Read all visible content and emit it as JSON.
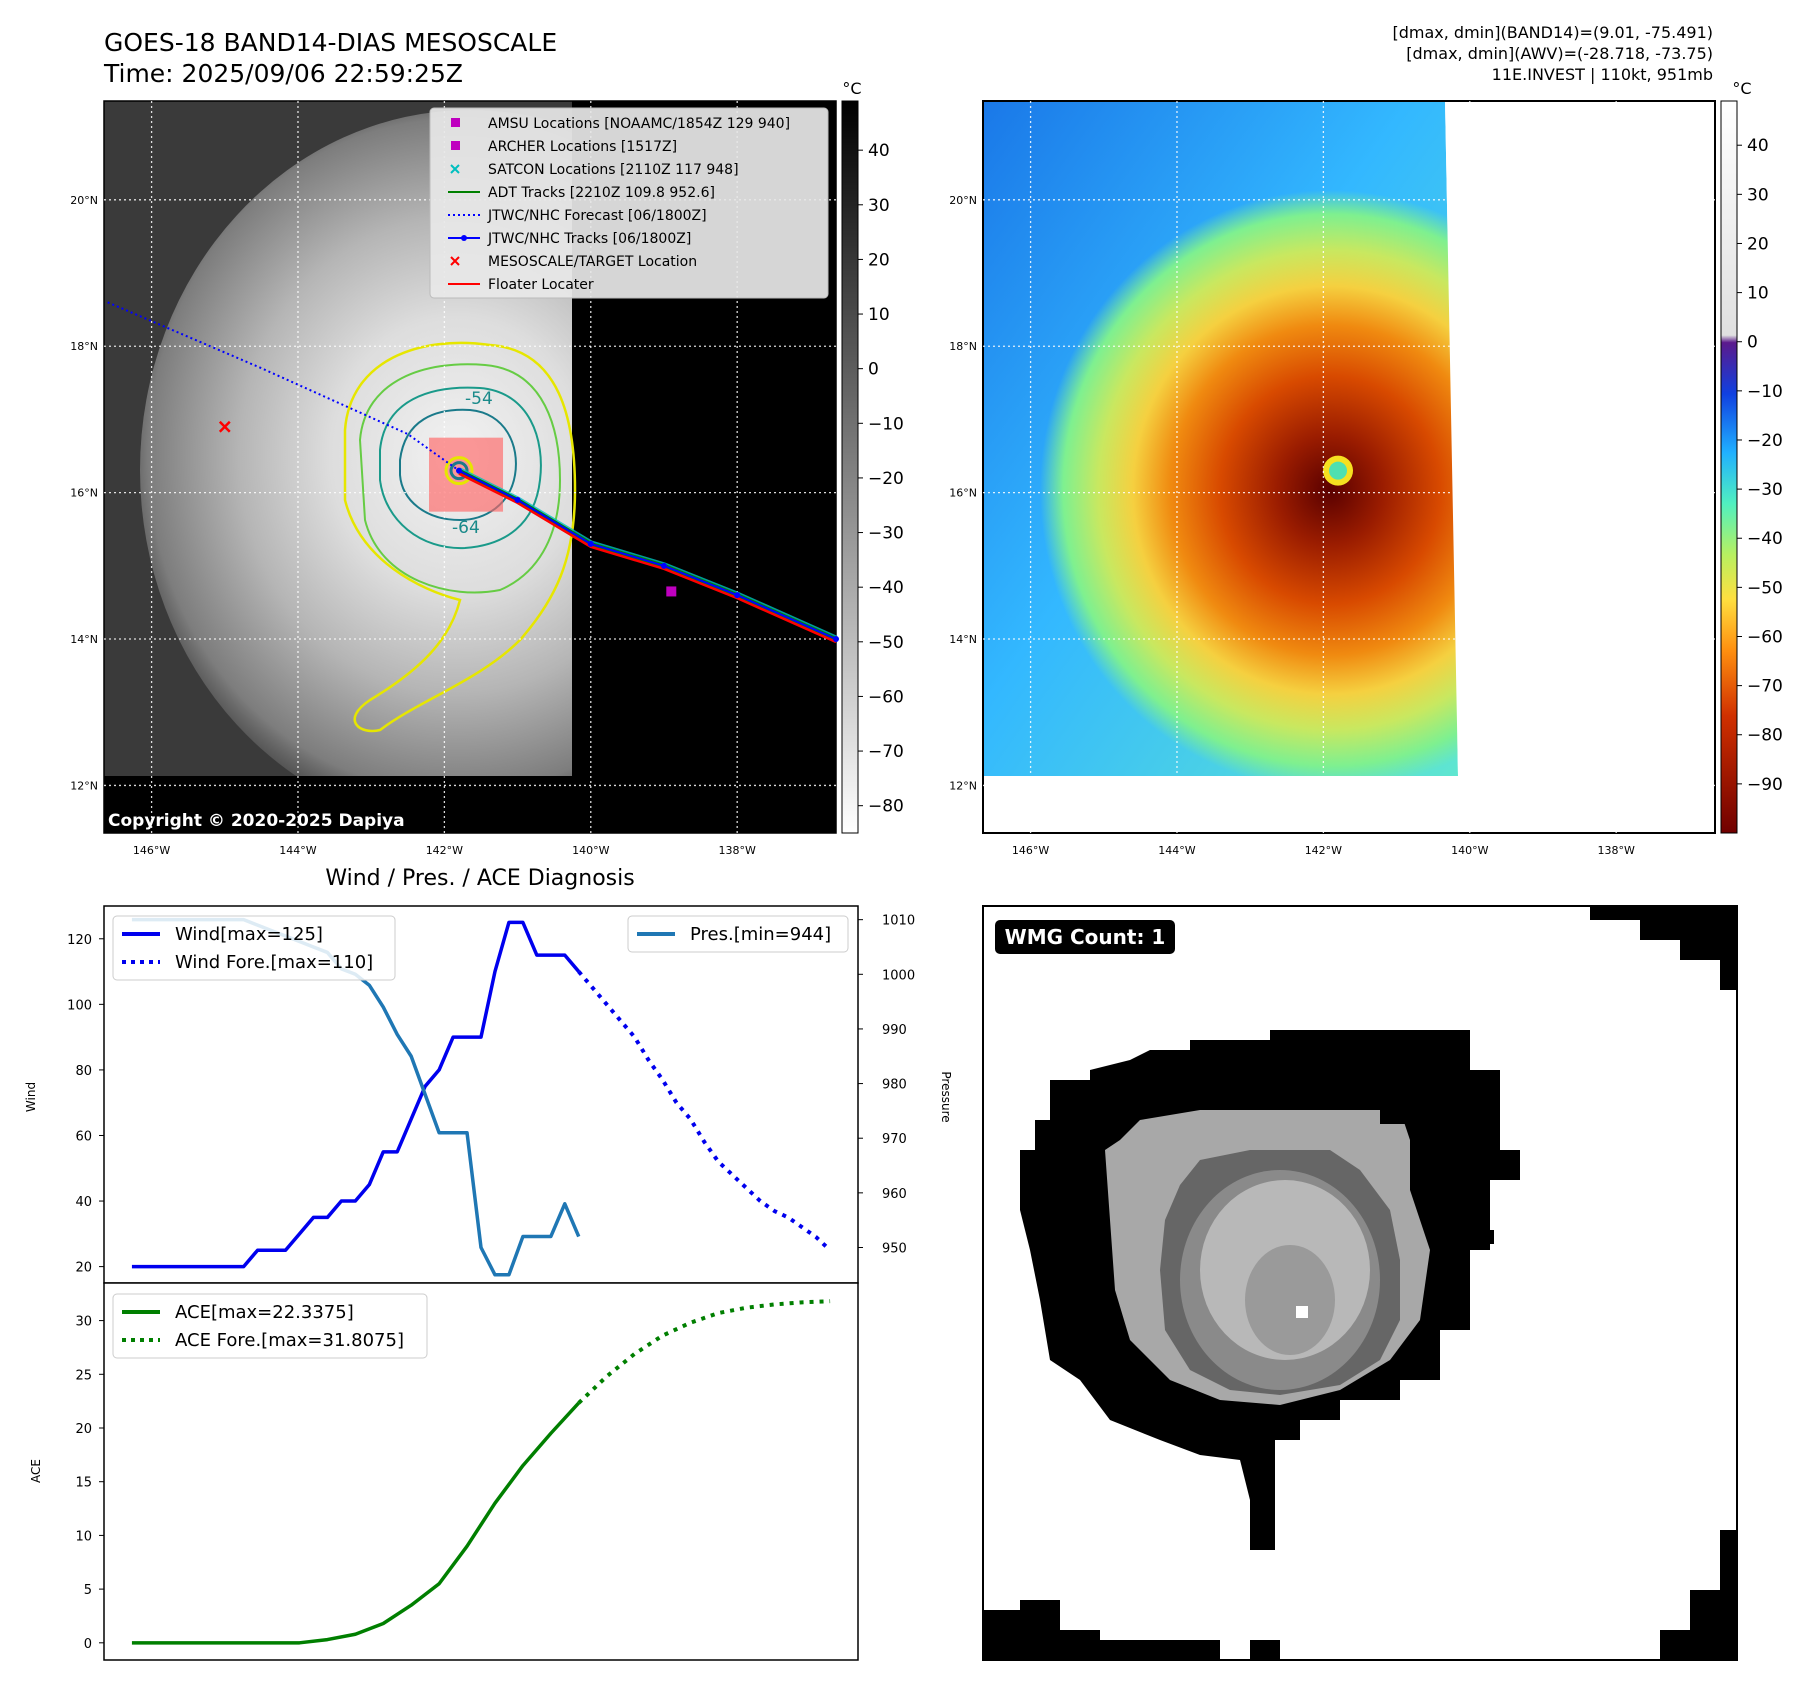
{
  "header": {
    "title": "GOES-18 BAND14-DIAS MESOSCALE",
    "time": "Time: 2025/09/06 22:59:25Z",
    "info": [
      "[dmax, dmin](BAND14)=(9.01, -75.491)",
      "[dmax, dmin](AWV)=(-28.718, -73.75)",
      "11E.INVEST | 110kt, 951mb"
    ],
    "copyright": "Copyright © 2020-2025 Dapiya"
  },
  "colors": {
    "wind": "#0000ee",
    "pressure": "#1f77b4",
    "ace": "#007f00",
    "floater": "#ff0000",
    "adt": "#008000"
  },
  "chart_data": [
    {
      "type": "heatmap",
      "name": "ir-map",
      "lon_ticks": [
        "146°W",
        "144°W",
        "142°W",
        "140°W",
        "138°W"
      ],
      "lon_values": [
        -146,
        -144,
        -142,
        -140,
        -138
      ],
      "lat_ticks": [
        "20°N",
        "18°N",
        "16°N",
        "14°N",
        "12°N"
      ],
      "lat_values": [
        20,
        18,
        16,
        14,
        12
      ],
      "lon_range": [
        -146.65,
        -136.65
      ],
      "lat_range": [
        11.35,
        21.35
      ],
      "colorbar": {
        "unit": "°C",
        "ticks": [
          40,
          30,
          20,
          10,
          0,
          -10,
          -20,
          -30,
          -40,
          -50,
          -60,
          -70,
          -80
        ],
        "range": [
          -85,
          49
        ]
      },
      "contour_labels": [
        "-54",
        "-64"
      ],
      "legend": [
        {
          "label": "AMSU Locations [NOAAMC/1854Z 129 940]",
          "marker": "square",
          "color": "#bf00bf"
        },
        {
          "label": "ARCHER Locations [1517Z]",
          "marker": "square",
          "color": "#bf00bf"
        },
        {
          "label": "SATCON Locations [2110Z 117 948]",
          "marker": "x",
          "color": "#00bfbf"
        },
        {
          "label": "ADT Tracks [2210Z 109.8 952.6]",
          "marker": "line",
          "color": "#008000"
        },
        {
          "label": "JTWC/NHC Forecast [06/1800Z]",
          "marker": "dotted",
          "color": "#0000ff"
        },
        {
          "label": "JTWC/NHC Tracks [06/1800Z]",
          "marker": "dotline",
          "color": "#0000ff"
        },
        {
          "label": "MESOSCALE/TARGET Location",
          "marker": "x",
          "color": "#ff0000"
        },
        {
          "label": "Floater Locater",
          "marker": "line",
          "color": "#ff0000"
        }
      ],
      "storm_center": [
        -141.8,
        16.3
      ],
      "target_location": [
        -145.0,
        16.9
      ],
      "forecast_track": [
        [
          -146.6,
          18.6
        ],
        [
          -144.5,
          17.7
        ],
        [
          -142.5,
          16.8
        ],
        [
          -141.8,
          16.3
        ]
      ],
      "best_track": [
        [
          -141.8,
          16.3
        ],
        [
          -141.0,
          15.9
        ],
        [
          -140.0,
          15.3
        ],
        [
          -139.0,
          15.0
        ],
        [
          -138.0,
          14.6
        ],
        [
          -136.65,
          14.0
        ]
      ]
    },
    {
      "type": "heatmap",
      "name": "awv-map",
      "lon_ticks": [
        "146°W",
        "144°W",
        "142°W",
        "140°W",
        "138°W"
      ],
      "lon_values": [
        -146,
        -144,
        -142,
        -140,
        -138
      ],
      "lat_ticks": [
        "20°N",
        "18°N",
        "16°N",
        "14°N",
        "12°N"
      ],
      "lat_values": [
        20,
        18,
        16,
        14,
        12
      ],
      "lon_range": [
        -146.65,
        -136.65
      ],
      "lat_range": [
        11.35,
        21.35
      ],
      "colorbar": {
        "unit": "°C",
        "ticks": [
          40,
          30,
          20,
          10,
          0,
          -10,
          -20,
          -30,
          -40,
          -50,
          -60,
          -70,
          -80,
          -90
        ],
        "range": [
          -100,
          49
        ]
      },
      "eye_center": [
        -141.8,
        16.3
      ]
    },
    {
      "type": "line",
      "name": "wind-pressure",
      "title": "Wind / Pres. / ACE Diagnosis",
      "ylabel": "Wind",
      "ylabel_right": "Pressure",
      "ylim": [
        15,
        130
      ],
      "ylim_right": [
        943.5,
        1012.5
      ],
      "yticks": [
        20,
        40,
        60,
        80,
        100,
        120
      ],
      "yticks_right": [
        950,
        960,
        970,
        980,
        990,
        1000,
        1010
      ],
      "xlim": [
        -2,
        52
      ],
      "series": [
        {
          "name": "Wind[max=125]",
          "style": "solid",
          "color": "#0000ee",
          "x": [
            0,
            2,
            4,
            6,
            8,
            9,
            10,
            11,
            12,
            13,
            14,
            15,
            16,
            17,
            18,
            19,
            20,
            21,
            22,
            23,
            24,
            25,
            26,
            27,
            28,
            29,
            30,
            31,
            32
          ],
          "y": [
            20,
            20,
            20,
            20,
            20,
            25,
            25,
            25,
            30,
            35,
            35,
            40,
            40,
            45,
            55,
            55,
            65,
            75,
            80,
            90,
            90,
            90,
            110,
            125,
            125,
            115,
            115,
            115,
            110
          ]
        },
        {
          "name": "Wind Fore.[max=110]",
          "style": "dotted",
          "color": "#0000ee",
          "x": [
            32,
            33,
            34,
            35,
            36,
            37,
            38,
            39,
            40,
            41,
            42,
            43,
            44,
            45,
            46,
            47,
            48,
            49,
            50
          ],
          "y": [
            110,
            105,
            100,
            95,
            90,
            83,
            77,
            70,
            65,
            58,
            52,
            48,
            44,
            40,
            37,
            35,
            32,
            29,
            25
          ]
        },
        {
          "name": "Pres.[min=944]",
          "style": "solid",
          "color": "#1f77b4",
          "x": [
            0,
            2,
            4,
            6,
            8,
            9,
            10,
            11,
            12,
            13,
            14,
            15,
            16,
            17,
            18,
            19,
            20,
            21,
            22,
            23,
            24,
            25,
            26,
            27,
            28,
            29,
            30,
            31,
            32
          ],
          "y": [
            1010,
            1010,
            1010,
            1010,
            1010,
            1009,
            1008,
            1007,
            1006,
            1005,
            1004,
            1001,
            1000,
            998,
            994,
            989,
            985,
            978,
            971,
            971,
            971,
            950,
            945,
            945,
            952,
            952,
            952,
            958,
            952
          ]
        }
      ]
    },
    {
      "type": "line",
      "name": "ace",
      "ylabel": "ACE",
      "ylim": [
        -1.6,
        33.5
      ],
      "yticks": [
        0,
        5,
        10,
        15,
        20,
        25,
        30
      ],
      "xlim": [
        -2,
        52
      ],
      "series": [
        {
          "name": "ACE[max=22.3375]",
          "style": "solid",
          "color": "#007f00",
          "x": [
            0,
            4,
            8,
            12,
            14,
            16,
            18,
            20,
            22,
            24,
            26,
            28,
            30,
            32
          ],
          "y": [
            0,
            0,
            0,
            0,
            0.3,
            0.8,
            1.8,
            3.5,
            5.5,
            9.0,
            13.0,
            16.5,
            19.5,
            22.3375
          ]
        },
        {
          "name": "ACE Fore.[max=31.8075]",
          "style": "dotted",
          "color": "#007f00",
          "x": [
            32,
            34,
            36,
            38,
            40,
            42,
            44,
            46,
            48,
            50
          ],
          "y": [
            22.3375,
            24.8,
            26.9,
            28.6,
            29.8,
            30.7,
            31.2,
            31.5,
            31.7,
            31.8075
          ]
        }
      ]
    },
    {
      "type": "heatmap",
      "name": "wmg",
      "badge": "WMG Count: 1"
    }
  ]
}
